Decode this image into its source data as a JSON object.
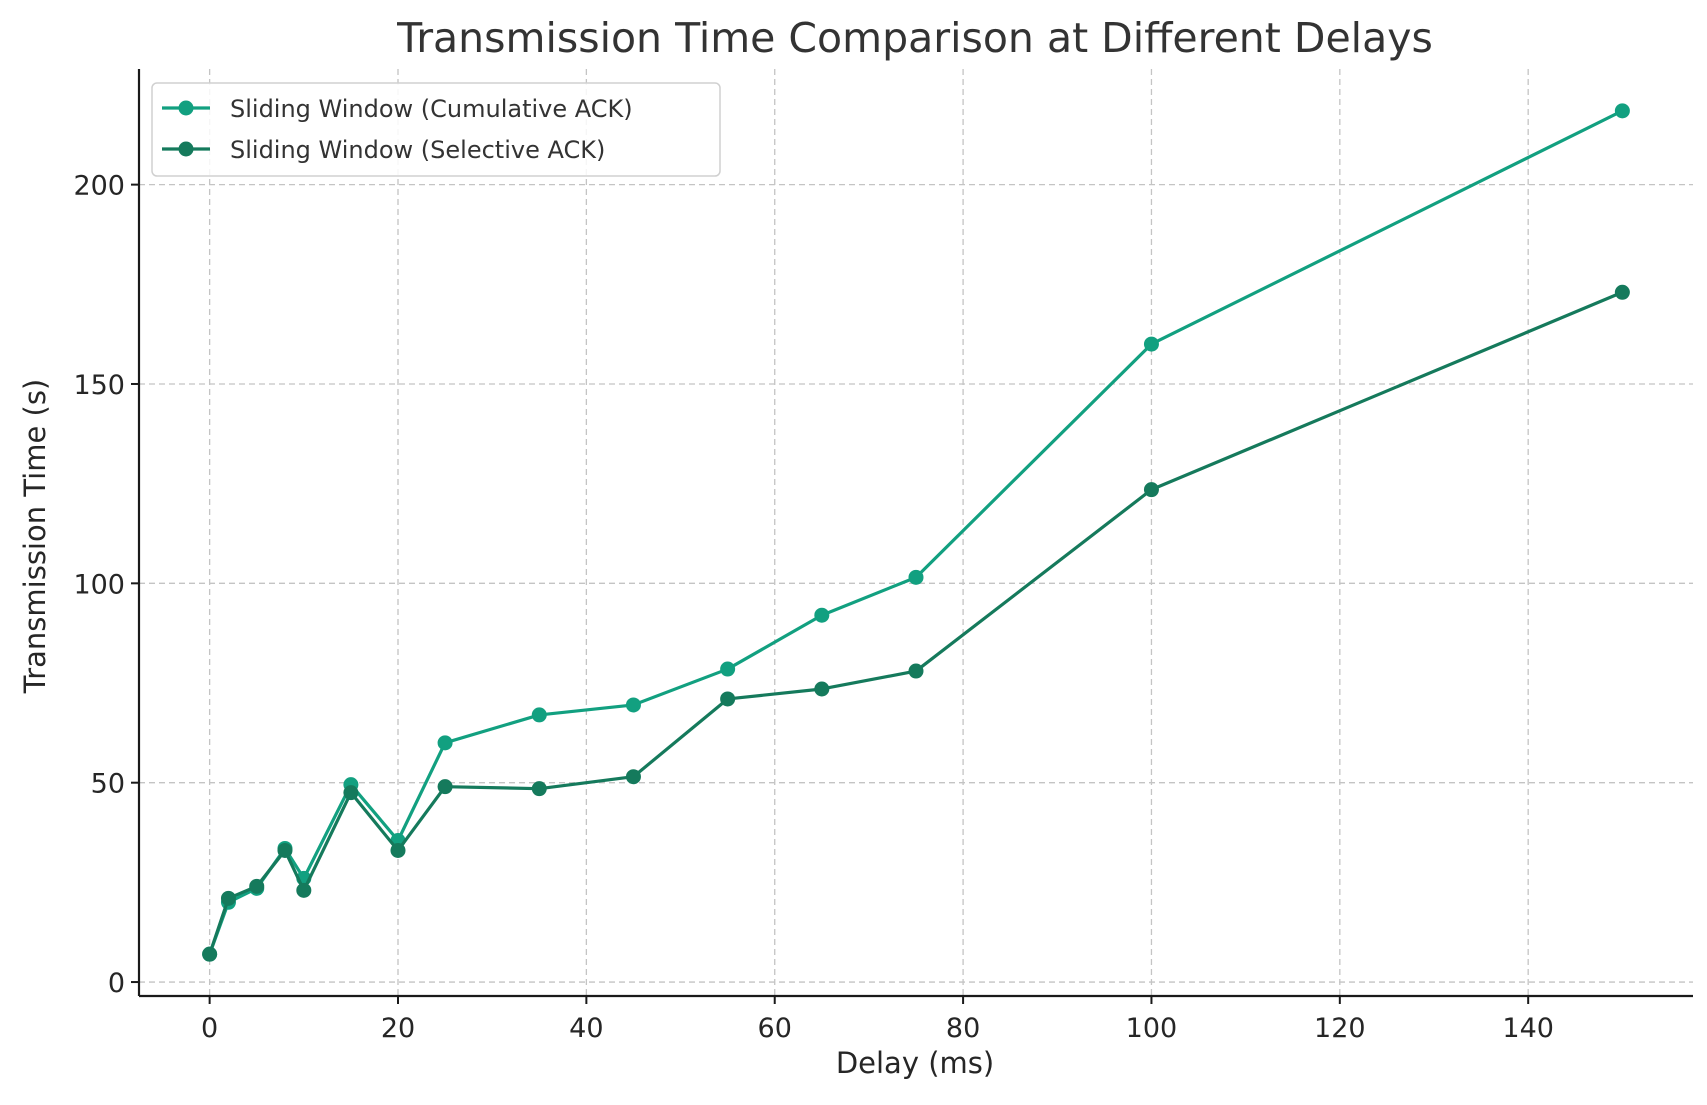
{
  "chart_data": {
    "type": "line",
    "title": "Transmission Time Comparison at Different Delays",
    "xlabel": "Delay (ms)",
    "ylabel": "Transmission Time (s)",
    "xlim": [
      -7.5,
      157.5
    ],
    "ylim": [
      -3.5,
      229
    ],
    "xticks": [
      0,
      20,
      40,
      60,
      80,
      100,
      120,
      140
    ],
    "yticks": [
      0,
      50,
      100,
      150,
      200
    ],
    "grid": true,
    "legend_position": "upper-left",
    "x": [
      0,
      2,
      5,
      8,
      10,
      15,
      20,
      25,
      35,
      45,
      55,
      65,
      75,
      100,
      150
    ],
    "series": [
      {
        "name": "Sliding Window (Cumulative ACK)",
        "color": "#12a080",
        "values": [
          7,
          20,
          23.5,
          33.5,
          26,
          49.5,
          35.5,
          60,
          67,
          69.5,
          78.5,
          92,
          101.5,
          160,
          218.5
        ]
      },
      {
        "name": "Sliding Window (Selective ACK)",
        "color": "#157a5c",
        "values": [
          7,
          21,
          24,
          33,
          23,
          47.5,
          33,
          49,
          48.5,
          51.5,
          71,
          73.5,
          78,
          123.5,
          173
        ]
      }
    ]
  }
}
